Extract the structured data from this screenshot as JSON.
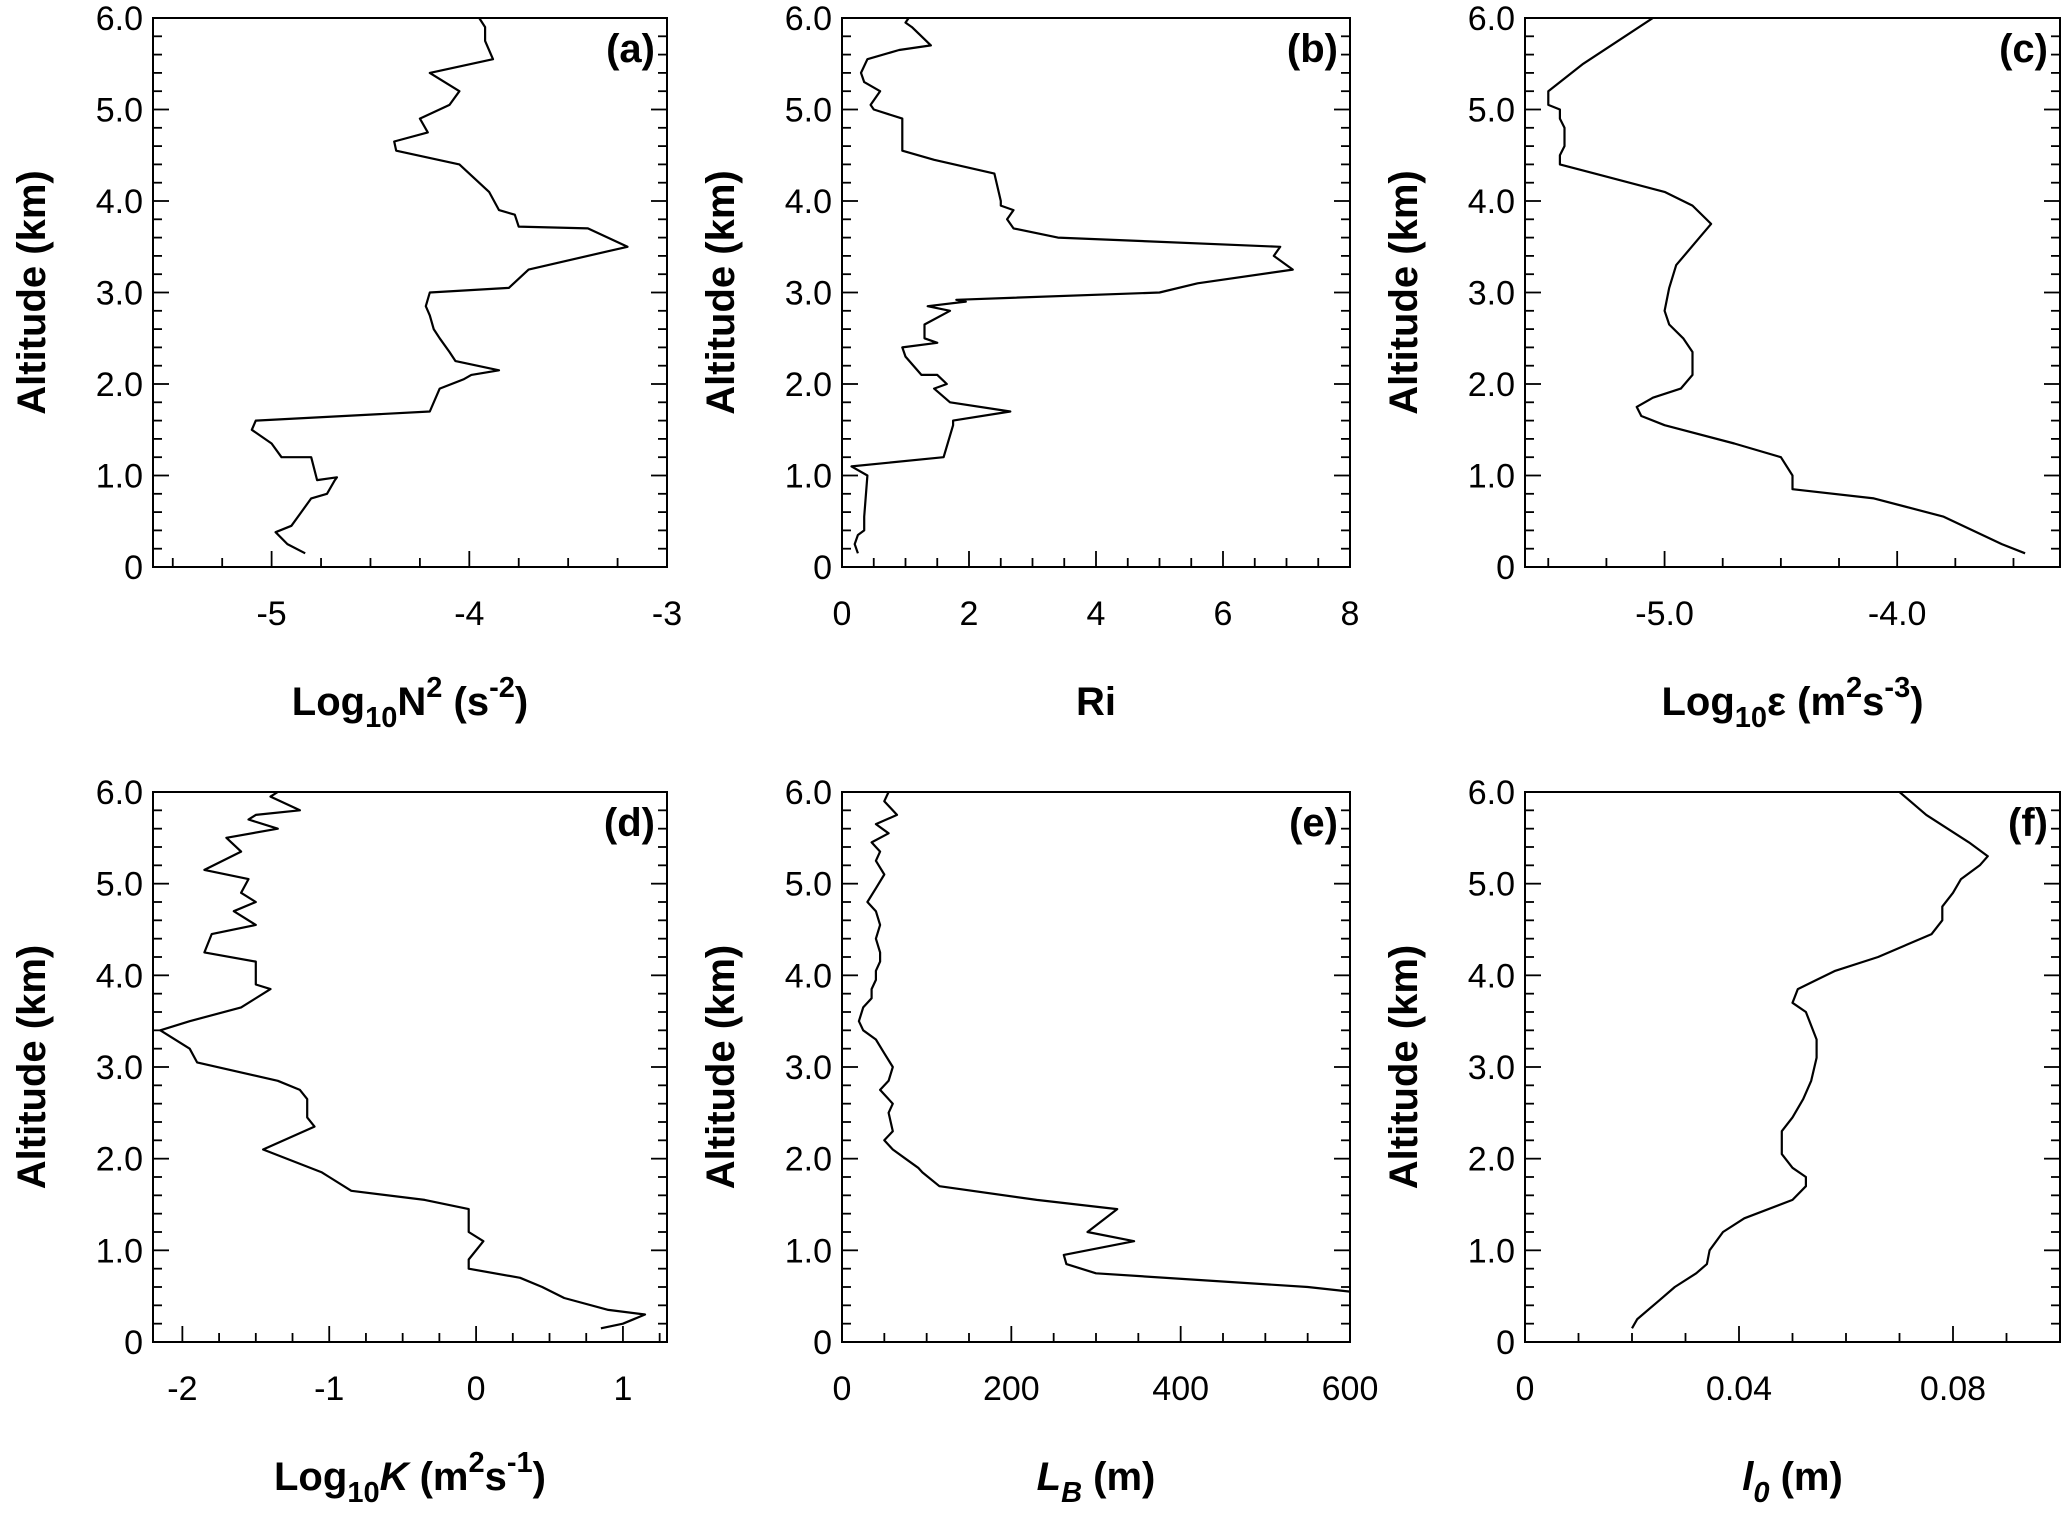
{
  "chart_data": [
    {
      "type": "line",
      "panel_label": "(a)",
      "xlabel_parts": [
        {
          "t": "Log"
        },
        {
          "t": "10",
          "sub": true
        },
        {
          "t": "N"
        },
        {
          "t": "2",
          "sup": true
        },
        {
          "t": " (s"
        },
        {
          "t": "-2",
          "sup": true
        },
        {
          "t": ")"
        }
      ],
      "ylabel": "Altitude (km)",
      "xlim": [
        -5.6,
        -3
      ],
      "ylim": [
        0,
        6
      ],
      "xticks": [
        -5,
        -4,
        -3
      ],
      "xtick_labels": [
        "-5",
        "-4",
        "-3"
      ],
      "xminor": [
        -5.5,
        -5.25,
        -4.75,
        -4.5,
        -4.25,
        -3.75,
        -3.5,
        -3.25
      ],
      "yticks": [
        0,
        1,
        2,
        3,
        4,
        5,
        6
      ],
      "ytick_labels": [
        "0",
        "1.0",
        "2.0",
        "3.0",
        "4.0",
        "5.0",
        "6.0"
      ],
      "x": [
        -4.83,
        -4.92,
        -4.98,
        -4.9,
        -4.85,
        -4.8,
        -4.72,
        -4.68,
        -4.67,
        -4.77,
        -4.8,
        -4.95,
        -5.0,
        -5.1,
        -5.08,
        -4.2,
        -4.15,
        -4.03,
        -3.99,
        -3.85,
        -4.07,
        -4.1,
        -4.15,
        -4.18,
        -4.2,
        -4.22,
        -4.2,
        -3.8,
        -3.7,
        -3.3,
        -3.2,
        -3.4,
        -3.75,
        -3.77,
        -3.85,
        -3.9,
        -4.05,
        -4.37,
        -4.38,
        -4.21,
        -4.25,
        -4.1,
        -4.05,
        -4.2,
        -3.88,
        -3.92,
        -3.92,
        -3.95
      ],
      "y": [
        0.15,
        0.25,
        0.38,
        0.45,
        0.6,
        0.75,
        0.8,
        0.95,
        0.98,
        0.95,
        1.2,
        1.2,
        1.35,
        1.5,
        1.6,
        1.7,
        1.95,
        2.05,
        2.1,
        2.15,
        2.25,
        2.35,
        2.5,
        2.6,
        2.75,
        2.85,
        3.0,
        3.05,
        3.25,
        3.45,
        3.5,
        3.7,
        3.72,
        3.85,
        3.9,
        4.1,
        4.4,
        4.55,
        4.65,
        4.75,
        4.9,
        5.05,
        5.2,
        5.4,
        5.55,
        5.75,
        5.9,
        6.0
      ]
    },
    {
      "type": "line",
      "panel_label": "(b)",
      "xlabel_parts": [
        {
          "t": "Ri"
        }
      ],
      "ylabel": "Altitude (km)",
      "xlim": [
        0,
        8
      ],
      "ylim": [
        0,
        6
      ],
      "xticks": [
        0,
        2,
        4,
        6,
        8
      ],
      "xtick_labels": [
        "0",
        "2",
        "4",
        "6",
        "8"
      ],
      "xminor": [
        0.5,
        1,
        1.5,
        2.5,
        3,
        3.5,
        4.5,
        5,
        5.5,
        6.5,
        7,
        7.5
      ],
      "yticks": [
        0,
        1,
        2,
        3,
        4,
        5,
        6
      ],
      "ytick_labels": [
        "0",
        "1.0",
        "2.0",
        "3.0",
        "4.0",
        "5.0",
        "6.0"
      ],
      "x": [
        0.25,
        0.2,
        0.25,
        0.35,
        0.35,
        0.4,
        0.15,
        1.6,
        1.75,
        1.75,
        2.65,
        1.7,
        1.45,
        1.65,
        1.5,
        1.25,
        1.0,
        0.95,
        1.5,
        1.3,
        1.3,
        1.7,
        1.35,
        1.95,
        1.8,
        5.0,
        5.6,
        7.1,
        6.8,
        6.9,
        3.4,
        2.7,
        2.6,
        2.7,
        2.5,
        2.5,
        2.4,
        1.45,
        0.95,
        0.95,
        0.5,
        0.45,
        0.6,
        0.35,
        0.3,
        0.4,
        0.9,
        1.4,
        1.1,
        1.0,
        1.05
      ],
      "y": [
        0.15,
        0.25,
        0.35,
        0.4,
        0.55,
        1.0,
        1.1,
        1.2,
        1.55,
        1.6,
        1.7,
        1.8,
        1.95,
        2.0,
        2.1,
        2.1,
        2.3,
        2.4,
        2.45,
        2.5,
        2.65,
        2.8,
        2.85,
        2.9,
        2.92,
        3.0,
        3.1,
        3.25,
        3.4,
        3.5,
        3.6,
        3.7,
        3.8,
        3.9,
        3.95,
        4.0,
        4.3,
        4.45,
        4.55,
        4.9,
        5.0,
        5.05,
        5.2,
        5.3,
        5.4,
        5.55,
        5.65,
        5.7,
        5.9,
        5.95,
        6.0
      ]
    },
    {
      "type": "line",
      "panel_label": "(c)",
      "xlabel_parts": [
        {
          "t": "Log"
        },
        {
          "t": "10",
          "sub": true
        },
        {
          "t": "ε (m"
        },
        {
          "t": "2",
          "sup": true
        },
        {
          "t": "s"
        },
        {
          "t": "-3",
          "sup": true
        },
        {
          "t": ")"
        }
      ],
      "ylabel": "Altitude (km)",
      "xlim": [
        -5.6,
        -3.3
      ],
      "ylim": [
        0,
        6
      ],
      "xticks": [
        -5,
        -4
      ],
      "xtick_labels": [
        "-5.0",
        "-4.0"
      ],
      "xminor": [
        -5.5,
        -5.25,
        -4.75,
        -4.5,
        -4.25,
        -3.75,
        -3.5
      ],
      "yticks": [
        0,
        1,
        2,
        3,
        4,
        5,
        6
      ],
      "ytick_labels": [
        "0",
        "1.0",
        "2.0",
        "3.0",
        "4.0",
        "5.0",
        "6.0"
      ],
      "x": [
        -3.45,
        -3.55,
        -3.8,
        -4.1,
        -4.45,
        -4.45,
        -4.5,
        -4.7,
        -5.0,
        -5.1,
        -5.12,
        -5.05,
        -4.93,
        -4.88,
        -4.88,
        -4.92,
        -4.98,
        -5.0,
        -4.98,
        -4.95,
        -4.85,
        -4.8,
        -4.88,
        -5.0,
        -5.3,
        -5.45,
        -5.45,
        -5.43,
        -5.43,
        -5.45,
        -5.45,
        -5.5,
        -5.5,
        -5.45,
        -5.35,
        -5.2,
        -5.05
      ],
      "y": [
        0.15,
        0.25,
        0.55,
        0.75,
        0.85,
        1.0,
        1.2,
        1.35,
        1.55,
        1.65,
        1.75,
        1.85,
        1.95,
        2.1,
        2.35,
        2.5,
        2.65,
        2.8,
        3.05,
        3.3,
        3.6,
        3.75,
        3.95,
        4.1,
        4.3,
        4.4,
        4.5,
        4.6,
        4.8,
        4.9,
        5.0,
        5.05,
        5.2,
        5.3,
        5.5,
        5.75,
        6.0
      ]
    },
    {
      "type": "line",
      "panel_label": "(d)",
      "xlabel_parts": [
        {
          "t": "Log"
        },
        {
          "t": "10",
          "sub": true
        },
        {
          "t": "K",
          "it": true
        },
        {
          "t": " (m"
        },
        {
          "t": "2",
          "sup": true
        },
        {
          "t": "s"
        },
        {
          "t": "-1",
          "sup": true
        },
        {
          "t": ")"
        }
      ],
      "ylabel": "Altitude (km)",
      "xlim": [
        -2.2,
        1.3
      ],
      "ylim": [
        0,
        6
      ],
      "xticks": [
        -2,
        -1,
        0,
        1
      ],
      "xtick_labels": [
        "-2",
        "-1",
        "0",
        "1"
      ],
      "xminor": [
        -1.75,
        -1.5,
        -1.25,
        -0.75,
        -0.5,
        -0.25,
        0.25,
        0.5,
        0.75,
        1.25
      ],
      "yticks": [
        0,
        1,
        2,
        3,
        4,
        5,
        6
      ],
      "ytick_labels": [
        "0",
        "1.0",
        "2.0",
        "3.0",
        "4.0",
        "5.0",
        "6.0"
      ],
      "x": [
        0.85,
        1.0,
        1.15,
        0.9,
        0.6,
        0.45,
        0.3,
        -0.05,
        -0.05,
        0.05,
        -0.05,
        -0.05,
        -0.35,
        -0.85,
        -1.0,
        -1.05,
        -1.45,
        -1.1,
        -1.15,
        -1.15,
        -1.2,
        -1.35,
        -1.9,
        -1.95,
        -2.15,
        -1.95,
        -1.6,
        -1.4,
        -1.5,
        -1.5,
        -1.85,
        -1.8,
        -1.5,
        -1.65,
        -1.5,
        -1.6,
        -1.55,
        -1.85,
        -1.6,
        -1.7,
        -1.35,
        -1.55,
        -1.5,
        -1.2,
        -1.4,
        -1.35
      ],
      "y": [
        0.15,
        0.2,
        0.3,
        0.35,
        0.48,
        0.6,
        0.7,
        0.8,
        0.9,
        1.1,
        1.2,
        1.45,
        1.55,
        1.65,
        1.8,
        1.85,
        2.1,
        2.35,
        2.45,
        2.65,
        2.75,
        2.85,
        3.05,
        3.2,
        3.4,
        3.5,
        3.65,
        3.85,
        3.9,
        4.15,
        4.25,
        4.45,
        4.55,
        4.7,
        4.8,
        4.9,
        5.05,
        5.15,
        5.35,
        5.5,
        5.6,
        5.7,
        5.75,
        5.8,
        5.95,
        6.0
      ]
    },
    {
      "type": "line",
      "panel_label": "(e)",
      "xlabel_parts": [
        {
          "t": "L",
          "it": true
        },
        {
          "t": "B",
          "it": true,
          "sub": true
        },
        {
          "t": " (m)"
        }
      ],
      "ylabel": "Altitude (km)",
      "xlim": [
        0,
        600
      ],
      "ylim": [
        0,
        6
      ],
      "xticks": [
        0,
        200,
        400,
        600
      ],
      "xtick_labels": [
        "0",
        "200",
        "400",
        "600"
      ],
      "xminor": [
        50,
        100,
        150,
        250,
        300,
        350,
        450,
        500,
        550
      ],
      "yticks": [
        0,
        1,
        2,
        3,
        4,
        5,
        6
      ],
      "ytick_labels": [
        "0",
        "1.0",
        "2.0",
        "3.0",
        "4.0",
        "5.0",
        "6.0"
      ],
      "x": [
        600,
        550,
        300,
        265,
        262,
        345,
        290,
        325,
        230,
        115,
        95,
        90,
        75,
        60,
        50,
        60,
        55,
        60,
        45,
        55,
        60,
        50,
        40,
        25,
        20,
        25,
        35,
        35,
        40,
        40,
        45,
        45,
        40,
        45,
        40,
        30,
        40,
        50,
        40,
        45,
        35,
        55,
        40,
        65,
        50,
        55
      ],
      "y": [
        0.55,
        0.6,
        0.75,
        0.85,
        0.95,
        1.1,
        1.2,
        1.45,
        1.55,
        1.7,
        1.85,
        1.9,
        2.0,
        2.1,
        2.2,
        2.3,
        2.5,
        2.6,
        2.75,
        2.85,
        3.0,
        3.15,
        3.3,
        3.4,
        3.5,
        3.65,
        3.75,
        3.85,
        3.95,
        4.05,
        4.15,
        4.25,
        4.4,
        4.55,
        4.7,
        4.8,
        4.95,
        5.1,
        5.25,
        5.35,
        5.45,
        5.55,
        5.65,
        5.75,
        5.9,
        6.0
      ]
    },
    {
      "type": "line",
      "panel_label": "(f)",
      "xlabel_parts": [
        {
          "t": "l",
          "it": true
        },
        {
          "t": "0",
          "it": true,
          "sub": true
        },
        {
          "t": " (m)"
        }
      ],
      "ylabel": "Altitude (km)",
      "xlim": [
        0,
        0.1
      ],
      "ylim": [
        0,
        6
      ],
      "xticks": [
        0,
        0.04,
        0.08
      ],
      "xtick_labels": [
        "0",
        "0.04",
        "0.08"
      ],
      "xminor": [
        0.01,
        0.02,
        0.03,
        0.05,
        0.06,
        0.07,
        0.09
      ],
      "yticks": [
        0,
        1,
        2,
        3,
        4,
        5,
        6
      ],
      "ytick_labels": [
        "0",
        "1.0",
        "2.0",
        "3.0",
        "4.0",
        "5.0",
        "6.0"
      ],
      "x": [
        0.02,
        0.021,
        0.025,
        0.028,
        0.032,
        0.034,
        0.0345,
        0.037,
        0.041,
        0.05,
        0.0525,
        0.0525,
        0.05,
        0.048,
        0.048,
        0.05,
        0.052,
        0.0535,
        0.0545,
        0.0545,
        0.0525,
        0.05,
        0.051,
        0.0545,
        0.058,
        0.066,
        0.076,
        0.078,
        0.078,
        0.08,
        0.0815,
        0.085,
        0.0865,
        0.083,
        0.075,
        0.07
      ],
      "y": [
        0.15,
        0.25,
        0.45,
        0.6,
        0.75,
        0.85,
        1.0,
        1.2,
        1.35,
        1.55,
        1.7,
        1.8,
        1.9,
        2.05,
        2.3,
        2.45,
        2.65,
        2.85,
        3.1,
        3.3,
        3.6,
        3.7,
        3.85,
        3.95,
        4.05,
        4.2,
        4.45,
        4.6,
        4.75,
        4.9,
        5.05,
        5.2,
        5.3,
        5.45,
        5.75,
        6.0
      ]
    }
  ]
}
